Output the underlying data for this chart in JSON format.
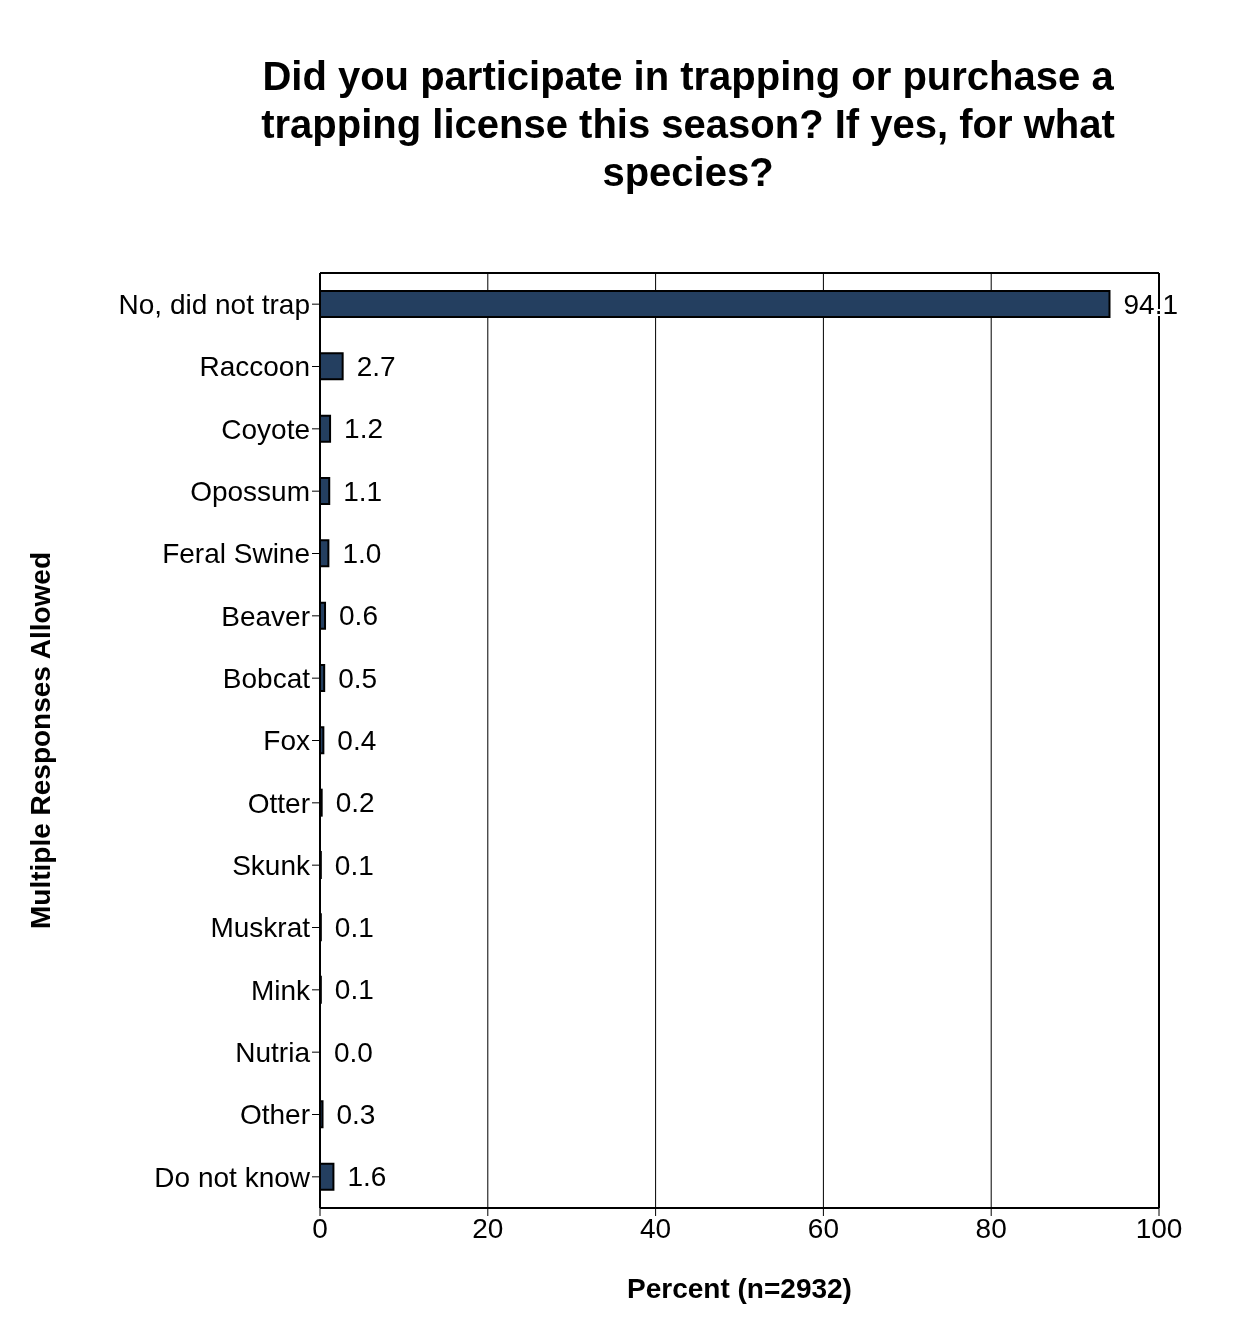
{
  "chart_data": {
    "type": "bar",
    "orientation": "horizontal",
    "title": "Did you participate in trapping or purchase a trapping license this season? If yes, for what species?",
    "xlabel": "Percent (n=2932)",
    "ylabel": "Multiple Responses Allowed",
    "categories": [
      "No, did not trap",
      "Raccoon",
      "Coyote",
      "Opossum",
      "Feral Swine",
      "Beaver",
      "Bobcat",
      "Fox",
      "Otter",
      "Skunk",
      "Muskrat",
      "Mink",
      "Nutria",
      "Other",
      "Do not know"
    ],
    "values": [
      94.1,
      2.7,
      1.2,
      1.1,
      1.0,
      0.6,
      0.5,
      0.4,
      0.2,
      0.1,
      0.1,
      0.1,
      0.0,
      0.3,
      1.6
    ],
    "value_labels": [
      "94.1",
      "2.7",
      "1.2",
      "1.1",
      "1.0",
      "0.6",
      "0.5",
      "0.4",
      "0.2",
      "0.1",
      "0.1",
      "0.1",
      "0.0",
      "0.3",
      "1.6"
    ],
    "color": "#243f60",
    "xlim": [
      0,
      100
    ],
    "xticks": [
      0,
      20,
      40,
      60,
      80,
      100
    ],
    "grid": "x"
  }
}
